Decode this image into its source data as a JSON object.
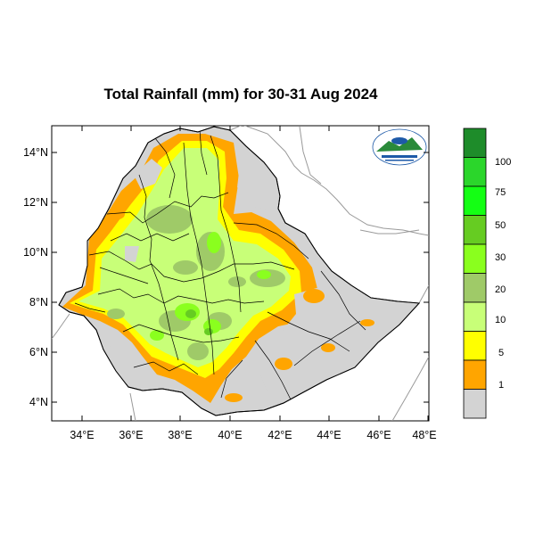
{
  "title": "Total Rainfall (mm) for 30-31 Aug 2024",
  "axes": {
    "lat_labels": [
      "14°N",
      "12°N",
      "10°N",
      "8°N",
      "6°N",
      "4°N"
    ],
    "lon_labels": [
      "34°E",
      "36°E",
      "38°E",
      "40°E",
      "42°E",
      "44°E",
      "46°E",
      "48°E"
    ],
    "lat_range": [
      3.2,
      15.0
    ],
    "lon_range": [
      32.8,
      48.0
    ]
  },
  "legend": {
    "labels": [
      "100",
      "75",
      "50",
      "30",
      "20",
      "10",
      "5",
      "1"
    ],
    "colors": [
      "#1e8c2a",
      "#2bd62b",
      "#14ff14",
      "#66cc22",
      "#8aff1e",
      "#9fca68",
      "#c8ff78",
      "#ffff00",
      "#ffa500",
      "#d3d3d3"
    ]
  },
  "map": {
    "land_color": "#d3d3d3",
    "logo_icon": "meteorology-agency-logo-icon"
  }
}
